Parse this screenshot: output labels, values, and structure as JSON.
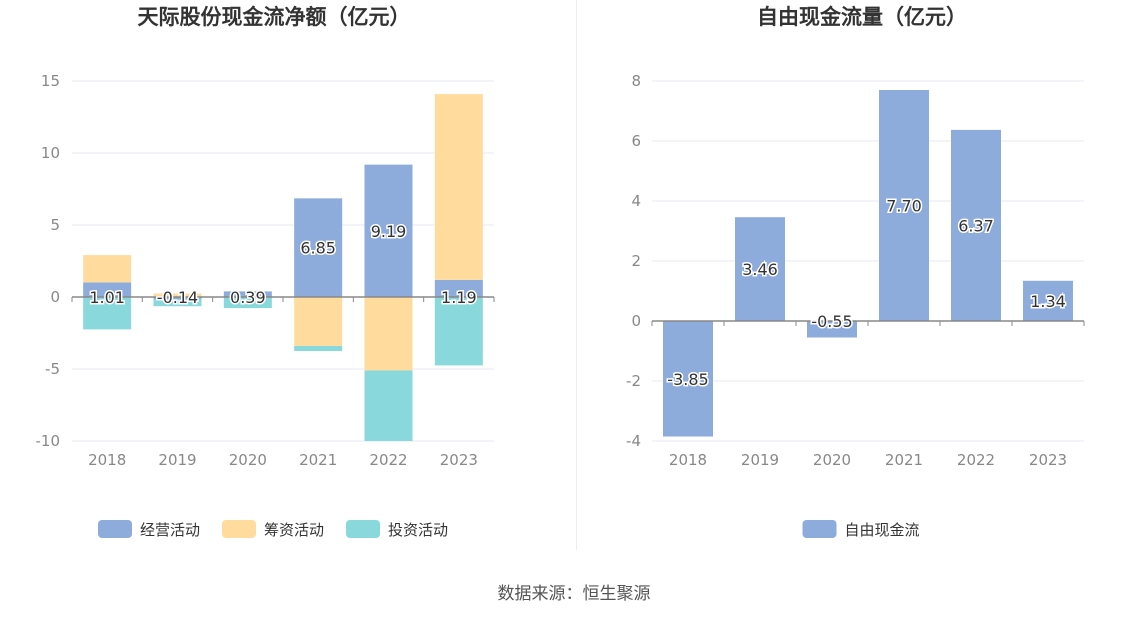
{
  "colors": {
    "operating": "#8dabdb",
    "financing": "#ffdc9e",
    "investing": "#88d8dc",
    "free_cash_flow": "#8dabdb"
  },
  "source_text": "数据来源：恒生聚源",
  "chart_data": [
    {
      "type": "bar",
      "stacked": true,
      "title": "天际股份现金流净额（亿元）",
      "categories": [
        "2018",
        "2019",
        "2020",
        "2021",
        "2022",
        "2023"
      ],
      "ylim": [
        -10,
        15
      ],
      "yticks": [
        -10,
        -5,
        0,
        5,
        10,
        15
      ],
      "grid": true,
      "legend_position": "bottom",
      "series": [
        {
          "name": "经营活动",
          "color": "#8dabdb",
          "values": [
            1.01,
            -0.14,
            0.39,
            6.85,
            9.19,
            1.19
          ],
          "labels": [
            "1.01",
            "-0.14",
            "0.39",
            "6.85",
            "9.19",
            "1.19"
          ]
        },
        {
          "name": "筹资活动",
          "color": "#ffdc9e",
          "values": [
            1.9,
            0.24,
            -0.02,
            -3.4,
            -5.1,
            12.9
          ]
        },
        {
          "name": "投资活动",
          "color": "#88d8dc",
          "values": [
            -2.25,
            -0.5,
            -0.75,
            -0.35,
            -4.9,
            -4.75
          ]
        }
      ]
    },
    {
      "type": "bar",
      "title": "自由现金流量（亿元）",
      "categories": [
        "2018",
        "2019",
        "2020",
        "2021",
        "2022",
        "2023"
      ],
      "ylim": [
        -4,
        8
      ],
      "yticks": [
        -4,
        -2,
        0,
        2,
        4,
        6,
        8
      ],
      "grid": true,
      "legend_position": "bottom",
      "series": [
        {
          "name": "自由现金流",
          "color": "#8dabdb",
          "values": [
            -3.85,
            3.46,
            -0.55,
            7.7,
            6.37,
            1.34
          ],
          "labels": [
            "-3.85",
            "3.46",
            "-0.55",
            "7.70",
            "6.37",
            "1.34"
          ]
        }
      ]
    }
  ]
}
